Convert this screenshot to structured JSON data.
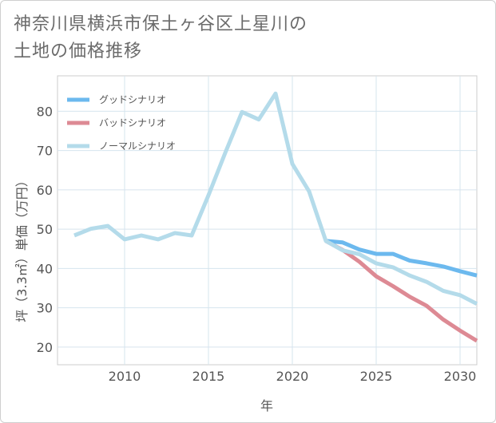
{
  "title_line1": "神奈川県横浜市保土ヶ谷区上星川の",
  "title_line2": "土地の価格推移",
  "chart_data": {
    "type": "line",
    "title": "神奈川県横浜市保土ヶ谷区上星川の土地の価格推移",
    "xlabel": "年",
    "ylabel": "坪（3.3㎡）単価（万円）",
    "xlim": [
      2006,
      2031
    ],
    "ylim": [
      15.5,
      89
    ],
    "xticks": [
      2010,
      2015,
      2020,
      2025,
      2030
    ],
    "yticks": [
      20,
      30,
      40,
      50,
      60,
      70,
      80
    ],
    "grid": true,
    "legend_position": "top-left",
    "series": [
      {
        "name": "グッドシナリオ",
        "color": "#6cb9ee",
        "x": [
          2022,
          2023,
          2024,
          2025,
          2026,
          2027,
          2028,
          2029,
          2030,
          2031
        ],
        "values": [
          47.0,
          46.6,
          44.8,
          43.7,
          43.7,
          42.0,
          41.3,
          40.5,
          39.3,
          38.2
        ]
      },
      {
        "name": "バッドシナリオ",
        "color": "#dd8a94",
        "x": [
          2022,
          2023,
          2024,
          2025,
          2026,
          2027,
          2028,
          2029,
          2030,
          2031
        ],
        "values": [
          47.0,
          44.7,
          41.7,
          38.0,
          35.5,
          32.8,
          30.5,
          27.0,
          24.2,
          21.6
        ]
      },
      {
        "name": "ノーマルシナリオ",
        "color": "#b4dbea",
        "x": [
          2007,
          2008,
          2009,
          2010,
          2011,
          2012,
          2013,
          2014,
          2015,
          2016,
          2017,
          2018,
          2019,
          2020,
          2021,
          2022,
          2023,
          2024,
          2025,
          2026,
          2027,
          2028,
          2029,
          2030,
          2031
        ],
        "values": [
          48.4,
          50.1,
          50.8,
          47.4,
          48.4,
          47.4,
          49.0,
          48.4,
          58.6,
          69.4,
          79.8,
          77.9,
          84.5,
          66.6,
          59.6,
          47.0,
          44.6,
          43.6,
          41.3,
          40.3,
          38.2,
          36.6,
          34.3,
          33.2,
          31.0
        ]
      }
    ]
  }
}
